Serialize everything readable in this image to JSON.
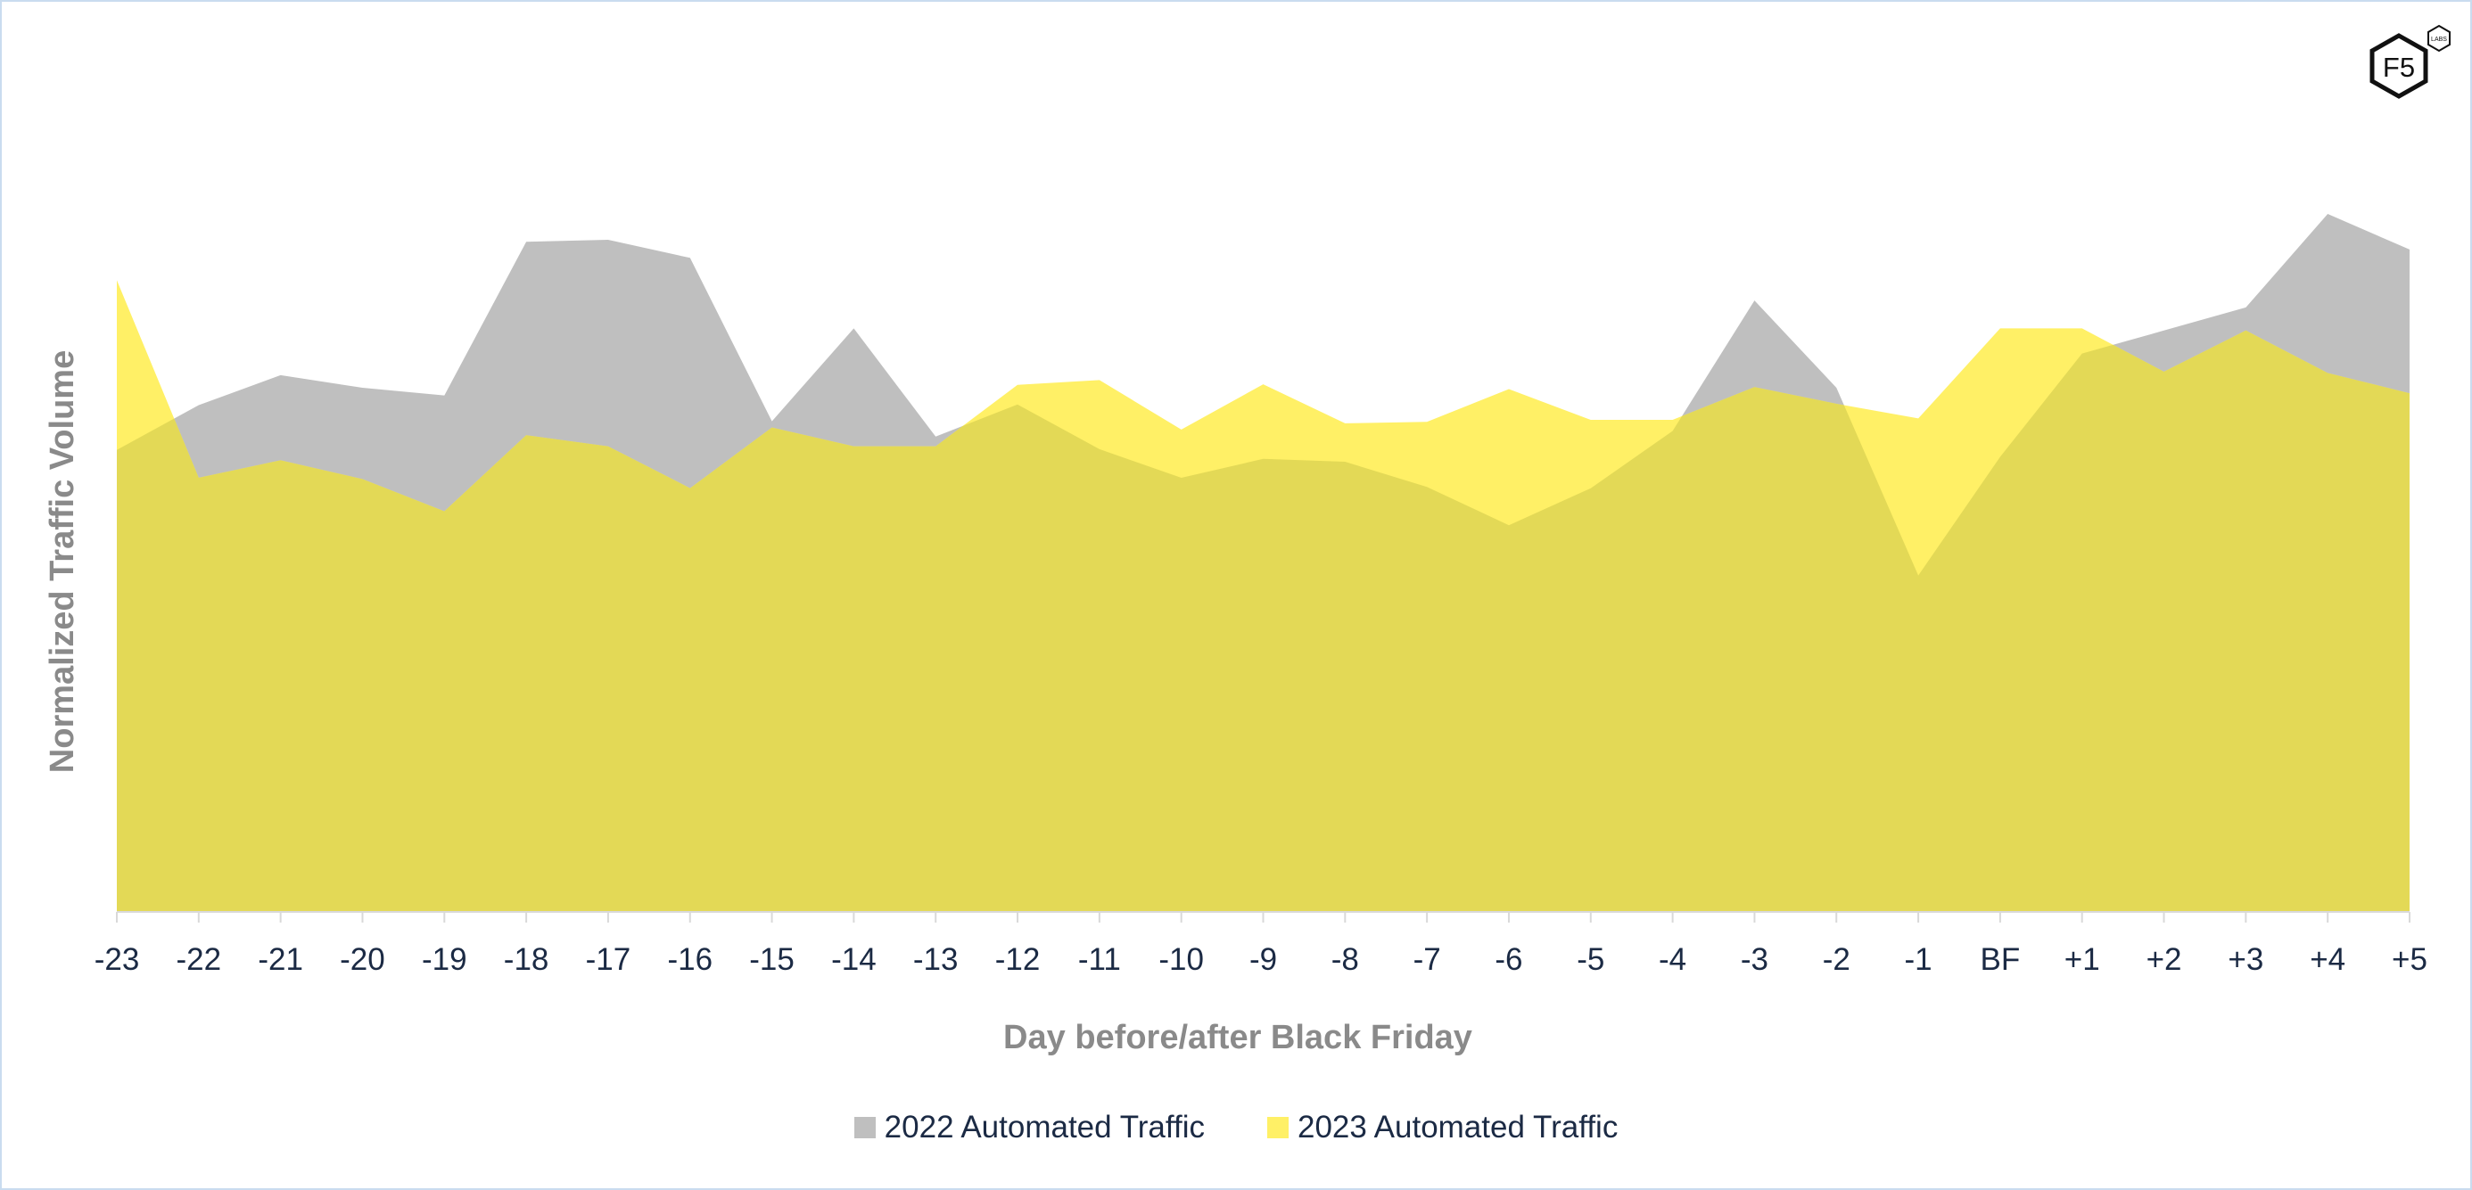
{
  "chart_data": {
    "type": "area",
    "categories": [
      "-23",
      "-22",
      "-21",
      "-20",
      "-19",
      "-18",
      "-17",
      "-16",
      "-15",
      "-14",
      "-13",
      "-12",
      "-11",
      "-10",
      "-9",
      "-8",
      "-7",
      "-6",
      "-5",
      "-4",
      "-3",
      "-2",
      "-1",
      "BF",
      "+1",
      "+2",
      "+3",
      "+4",
      "+5"
    ],
    "xlabel": "Day before/after Black Friday",
    "ylabel": "Normalized Traffic Volume",
    "ylim": [
      0,
      1
    ],
    "grid": false,
    "legend_position": "bottom-center",
    "series": [
      {
        "name": "2022 Automated Traffic",
        "color": "#bfbfbf",
        "values": [
          0.662,
          0.726,
          0.769,
          0.751,
          0.74,
          0.96,
          0.963,
          0.937,
          0.703,
          0.836,
          0.681,
          0.727,
          0.663,
          0.622,
          0.649,
          0.645,
          0.609,
          0.554,
          0.607,
          0.689,
          0.876,
          0.751,
          0.482,
          0.652,
          0.8,
          0.833,
          0.866,
          1.0,
          0.949
        ]
      },
      {
        "name": "2023 Automated Traffic",
        "color": "#fff066",
        "values": [
          0.905,
          0.622,
          0.647,
          0.62,
          0.574,
          0.683,
          0.667,
          0.607,
          0.694,
          0.667,
          0.667,
          0.755,
          0.762,
          0.691,
          0.756,
          0.7,
          0.702,
          0.749,
          0.705,
          0.705,
          0.752,
          0.728,
          0.707,
          0.836,
          0.836,
          0.774,
          0.833,
          0.772,
          0.743
        ]
      }
    ],
    "overlap_color": "#e3d956"
  },
  "logo": {
    "main_text": "F5",
    "badge_text": "LABS"
  }
}
